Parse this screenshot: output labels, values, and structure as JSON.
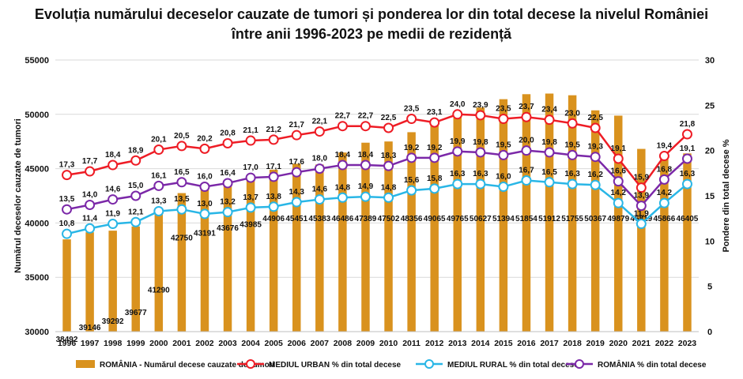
{
  "chart_data": {
    "type": "bar+line",
    "title": "Evoluția numărului deceselor cauzate de tumori și ponderea lor din total decese la nivelul României",
    "subtitle": "între anii 1996-2023 pe medii de rezidență",
    "ylabel_left": "Numărul deceselor cauzate de tumori",
    "ylabel_right": "Pondere din total decese %",
    "ylim_left": [
      30000,
      55000
    ],
    "ylim_right": [
      0,
      30
    ],
    "yticks_left": [
      "30000",
      "35000",
      "40000",
      "45000",
      "50000",
      "55000"
    ],
    "yticks_right": [
      "0",
      "5",
      "10",
      "15",
      "20",
      "25",
      "30"
    ],
    "categories": [
      "1996",
      "1997",
      "1998",
      "1999",
      "2000",
      "2001",
      "2002",
      "2003",
      "2004",
      "2005",
      "2006",
      "2007",
      "2008",
      "2009",
      "2010",
      "2011",
      "2012",
      "2013",
      "2014",
      "2015",
      "2016",
      "2017",
      "2018",
      "2019",
      "2020",
      "2021",
      "2022",
      "2023"
    ],
    "bars": {
      "name": "ROMÂNIA - Numărul decese cauzate de tumori",
      "color": "#D9921E",
      "values": [
        38492,
        39146,
        39292,
        39677,
        41290,
        42750,
        43191,
        43676,
        43985,
        44906,
        45451,
        45383,
        46486,
        47389,
        47502,
        48356,
        49065,
        49765,
        50627,
        51394,
        51854,
        51912,
        51755,
        50367,
        49879,
        46819,
        45866,
        46405
      ]
    },
    "series": [
      {
        "name": "MEDIUL URBAN % din total decese",
        "color": "#EE1C25",
        "values": [
          17.3,
          17.7,
          18.4,
          18.9,
          20.1,
          20.5,
          20.2,
          20.8,
          21.1,
          21.2,
          21.7,
          22.1,
          22.7,
          22.7,
          22.5,
          23.5,
          23.1,
          24.0,
          23.9,
          23.5,
          23.7,
          23.4,
          23.0,
          22.5,
          19.1,
          15.9,
          19.4,
          21.8
        ]
      },
      {
        "name": "MEDIUL RURAL % din total decese",
        "color": "#29B6E6",
        "values": [
          10.8,
          11.4,
          11.9,
          12.1,
          13.3,
          13.5,
          13.0,
          13.2,
          13.7,
          13.8,
          14.3,
          14.6,
          14.8,
          14.9,
          14.8,
          15.6,
          15.8,
          16.3,
          16.3,
          16.0,
          16.7,
          16.5,
          16.3,
          16.2,
          14.2,
          11.9,
          14.2,
          16.3
        ]
      },
      {
        "name": "ROMÂNIA % din total decese",
        "color": "#7B28A8",
        "values": [
          13.5,
          14.0,
          14.6,
          15.0,
          16.1,
          16.5,
          16.0,
          16.4,
          17.0,
          17.1,
          17.6,
          18.0,
          18.4,
          18.4,
          18.3,
          19.2,
          19.2,
          19.9,
          19.8,
          19.5,
          20.0,
          19.8,
          19.5,
          19.3,
          16.6,
          13.9,
          16.8,
          19.1
        ]
      }
    ],
    "legend_position": "bottom",
    "grid": true
  }
}
